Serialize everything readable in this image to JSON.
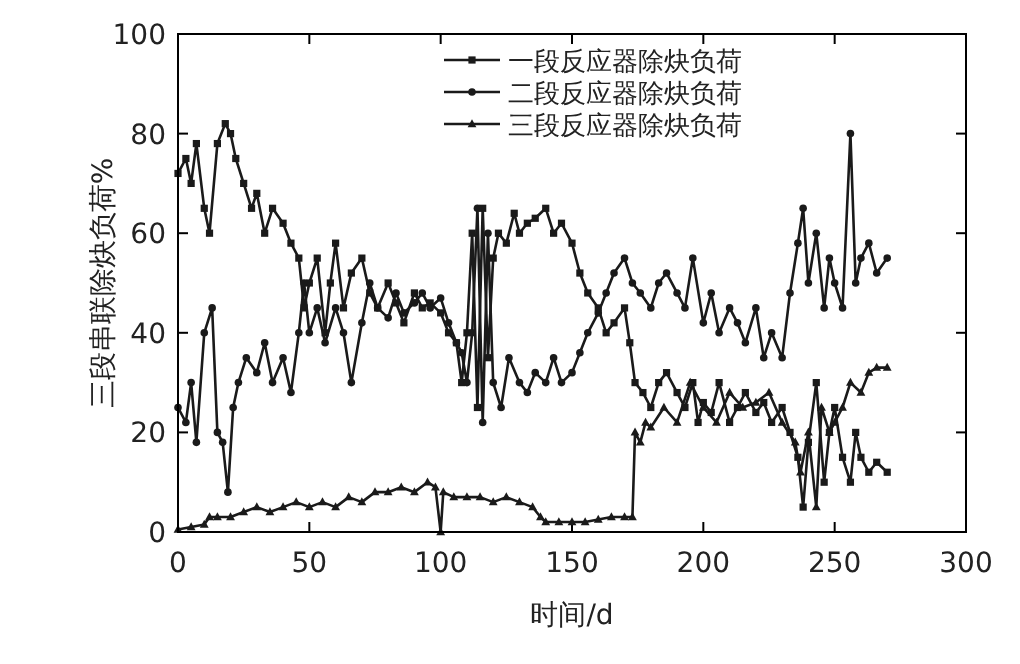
{
  "chart_data": {
    "type": "line",
    "xlabel": "时间/d",
    "ylabel": "三段串联除炔负荷%",
    "xlim": [
      0,
      300
    ],
    "ylim": [
      0,
      100
    ],
    "xticks": [
      0,
      50,
      100,
      150,
      200,
      250,
      300
    ],
    "yticks": [
      0,
      20,
      40,
      60,
      80,
      100
    ],
    "legend": "top right",
    "grid": false,
    "line_style": "solid",
    "series": [
      {
        "name": "一段反应器除炔负荷",
        "color": "#1a1a1a",
        "marker": "square",
        "x": [
          0,
          3,
          5,
          7,
          10,
          12,
          15,
          18,
          20,
          22,
          25,
          28,
          30,
          33,
          36,
          40,
          43,
          46,
          48,
          50,
          53,
          56,
          58,
          60,
          63,
          66,
          70,
          73,
          76,
          80,
          83,
          86,
          90,
          93,
          96,
          100,
          103,
          106,
          108,
          110,
          112,
          114,
          116,
          118,
          120,
          122,
          125,
          128,
          130,
          133,
          136,
          140,
          143,
          146,
          150,
          153,
          156,
          160,
          163,
          166,
          170,
          172,
          174,
          177,
          180,
          183,
          186,
          190,
          193,
          196,
          198,
          200,
          203,
          206,
          210,
          213,
          216,
          220,
          223,
          226,
          230,
          233,
          236,
          238,
          240,
          243,
          246,
          248,
          250,
          253,
          256,
          258,
          260,
          263,
          266,
          270
        ],
        "values": [
          72,
          75,
          70,
          78,
          65,
          60,
          78,
          82,
          80,
          75,
          70,
          65,
          68,
          60,
          65,
          62,
          58,
          55,
          45,
          50,
          55,
          40,
          50,
          58,
          45,
          52,
          55,
          48,
          45,
          50,
          46,
          42,
          48,
          45,
          46,
          44,
          40,
          38,
          30,
          40,
          60,
          25,
          65,
          35,
          55,
          60,
          58,
          64,
          60,
          62,
          63,
          65,
          60,
          62,
          58,
          52,
          48,
          45,
          40,
          42,
          45,
          38,
          30,
          28,
          25,
          30,
          32,
          28,
          25,
          30,
          22,
          26,
          24,
          30,
          22,
          25,
          28,
          24,
          26,
          22,
          25,
          20,
          15,
          5,
          18,
          30,
          10,
          20,
          25,
          15,
          10,
          20,
          15,
          12,
          14,
          12
        ]
      },
      {
        "name": "二段反应器除炔负荷",
        "color": "#1a1a1a",
        "marker": "circle",
        "x": [
          0,
          3,
          5,
          7,
          10,
          13,
          15,
          17,
          19,
          21,
          23,
          26,
          30,
          33,
          36,
          40,
          43,
          46,
          48,
          50,
          53,
          56,
          60,
          63,
          66,
          70,
          73,
          76,
          80,
          83,
          86,
          90,
          93,
          96,
          100,
          103,
          106,
          108,
          110,
          112,
          114,
          116,
          118,
          120,
          123,
          126,
          130,
          133,
          136,
          140,
          143,
          146,
          150,
          153,
          156,
          160,
          163,
          166,
          170,
          173,
          176,
          180,
          183,
          186,
          190,
          193,
          196,
          200,
          203,
          206,
          210,
          213,
          216,
          220,
          223,
          226,
          230,
          233,
          236,
          238,
          240,
          243,
          246,
          248,
          250,
          253,
          256,
          258,
          260,
          263,
          266,
          270
        ],
        "values": [
          25,
          22,
          30,
          18,
          40,
          45,
          20,
          18,
          8,
          25,
          30,
          35,
          32,
          38,
          30,
          35,
          28,
          40,
          50,
          40,
          45,
          38,
          45,
          40,
          30,
          42,
          50,
          45,
          43,
          48,
          44,
          46,
          48,
          45,
          47,
          42,
          38,
          36,
          30,
          40,
          65,
          22,
          60,
          30,
          25,
          35,
          30,
          28,
          32,
          30,
          35,
          30,
          32,
          36,
          40,
          44,
          48,
          52,
          55,
          50,
          48,
          45,
          50,
          52,
          48,
          45,
          55,
          42,
          48,
          40,
          45,
          42,
          38,
          45,
          35,
          40,
          35,
          48,
          58,
          65,
          50,
          60,
          45,
          55,
          50,
          45,
          80,
          50,
          55,
          58,
          52,
          55
        ]
      },
      {
        "name": "三段反应器除炔负荷",
        "color": "#1a1a1a",
        "marker": "triangle",
        "x": [
          0,
          5,
          10,
          12,
          15,
          20,
          25,
          30,
          35,
          40,
          45,
          50,
          55,
          60,
          65,
          70,
          75,
          80,
          85,
          90,
          95,
          98,
          100,
          101,
          105,
          110,
          115,
          120,
          125,
          130,
          135,
          138,
          140,
          145,
          150,
          155,
          160,
          165,
          170,
          173,
          174,
          176,
          178,
          180,
          185,
          190,
          195,
          200,
          205,
          210,
          215,
          220,
          225,
          230,
          235,
          237,
          240,
          243,
          245,
          248,
          250,
          253,
          256,
          260,
          263,
          266,
          270
        ],
        "values": [
          0.5,
          1,
          1.5,
          3,
          3,
          3,
          4,
          5,
          4,
          5,
          6,
          5,
          6,
          5,
          7,
          6,
          8,
          8,
          9,
          8,
          10,
          9,
          0,
          8,
          7,
          7,
          7,
          6,
          7,
          6,
          5,
          3,
          2,
          2,
          2,
          2,
          2.5,
          3,
          3,
          3,
          20,
          18,
          22,
          21,
          25,
          22,
          30,
          25,
          22,
          28,
          25,
          26,
          28,
          22,
          18,
          12,
          20,
          5,
          25,
          20,
          22,
          25,
          30,
          28,
          32,
          33,
          33
        ]
      }
    ]
  }
}
